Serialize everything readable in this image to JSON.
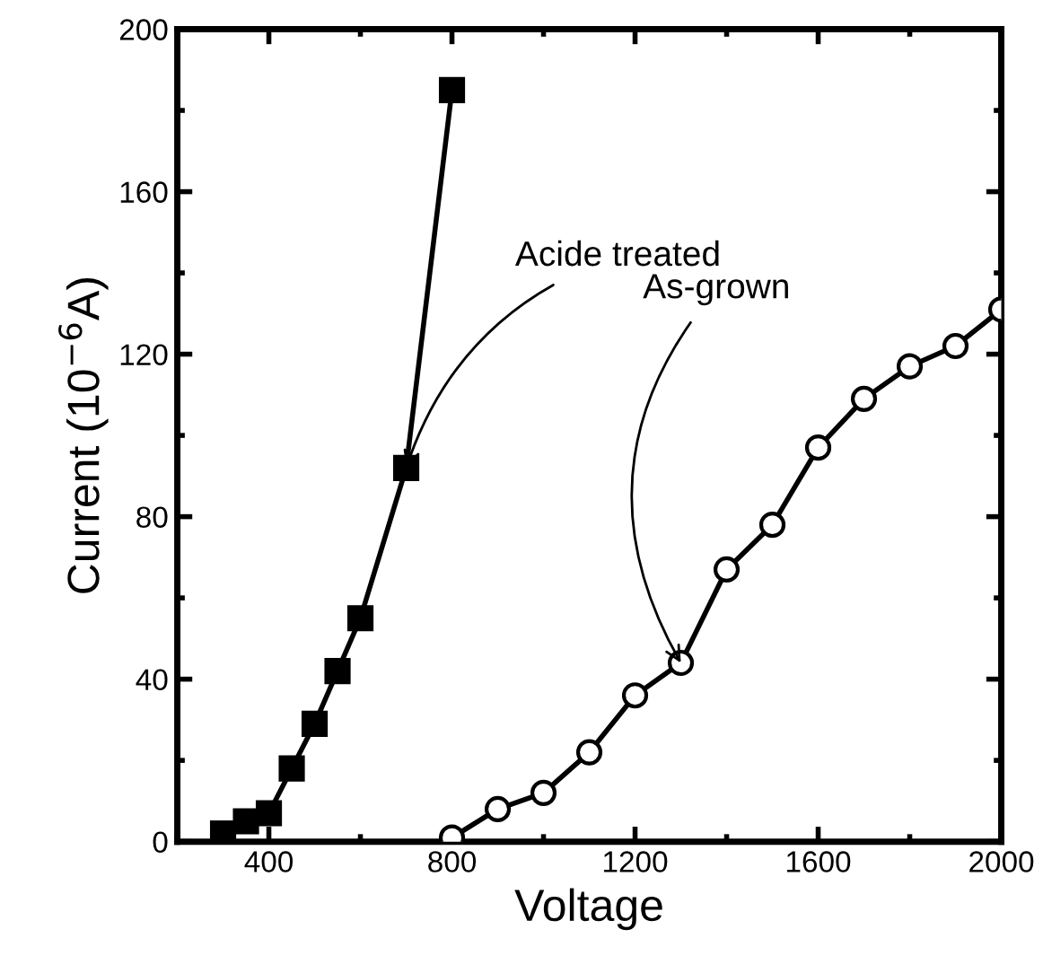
{
  "chart_data": {
    "type": "line",
    "xlabel": "Voltage",
    "ylabel": "Current (10$^{−6}$A)",
    "xlim": [
      200,
      2000
    ],
    "ylim": [
      0,
      200
    ],
    "xticks": [
      400,
      800,
      1200,
      1600,
      2000
    ],
    "yticks": [
      0,
      40,
      80,
      120,
      160,
      200
    ],
    "grid": false,
    "legend": false,
    "line_style": "solid",
    "series": [
      {
        "color": "#000000",
        "marker": "square",
        "x": [
          300,
          350,
          400,
          450,
          500,
          550,
          600,
          700,
          800
        ],
        "values": [
          2,
          5,
          7,
          18,
          29,
          42,
          55,
          92,
          185
        ]
      },
      {
        "color": "#000000",
        "marker": "circle",
        "x": [
          800,
          900,
          1000,
          1100,
          1200,
          1300,
          1400,
          1500,
          1600,
          1700,
          1800,
          1900,
          2000
        ],
        "values": [
          1,
          8,
          12,
          22,
          36,
          44,
          67,
          78,
          97,
          109,
          117,
          122,
          131
        ]
      }
    ],
    "annotations": [
      {
        "text": "Acide treated",
        "x": 700,
        "y": 92
      },
      {
        "text": "As-grown",
        "x": 1300,
        "y": 44
      }
    ]
  }
}
